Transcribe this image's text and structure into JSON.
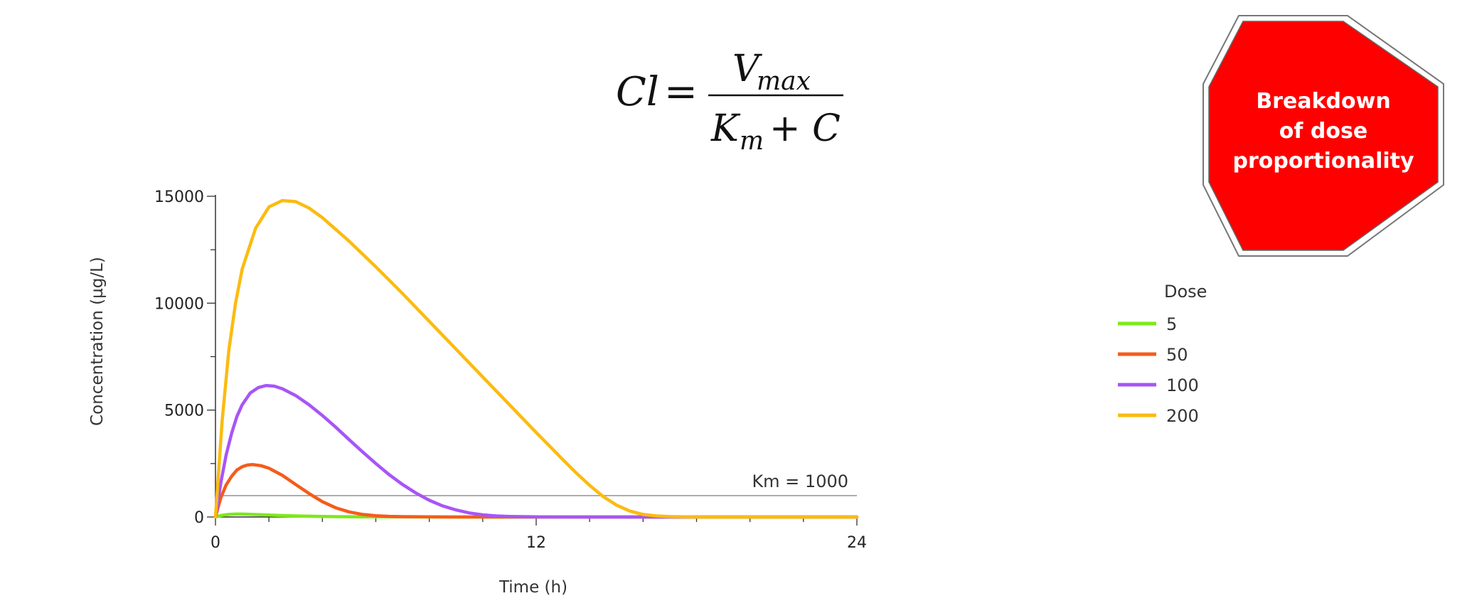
{
  "formula": {
    "lhs": "Cl",
    "equals": "=",
    "numerator_main": "V",
    "numerator_sub": "max",
    "denominator_main": "K",
    "denominator_sub": "m",
    "denominator_rest": "+ C"
  },
  "stop_sign": {
    "lines": [
      "Breakdown",
      "of dose",
      "proportionality"
    ],
    "fill_color": "#ff0000"
  },
  "chart_data": {
    "type": "line",
    "xlabel": "Time (h)",
    "ylabel": "Concentration (µg/L)",
    "xlim": [
      0,
      24
    ],
    "ylim": [
      0,
      15000
    ],
    "x_ticks": [
      0,
      12,
      24
    ],
    "y_ticks": [
      0,
      5000,
      10000,
      15000
    ],
    "grid": false,
    "legend": {
      "title": "Dose",
      "placement": "right"
    },
    "reference_line": {
      "y": 1000,
      "label": "Km = 1000",
      "color": "#888888"
    },
    "series": [
      {
        "name": "5",
        "color": "#7ee81c",
        "x": [
          0,
          0.25,
          0.5,
          0.75,
          1,
          1.5,
          2,
          2.5,
          3,
          3.5,
          4,
          4.5,
          5,
          6,
          7,
          8,
          10,
          12,
          16,
          20,
          24
        ],
        "y": [
          0,
          80,
          120,
          135,
          135,
          115,
          90,
          68,
          50,
          36,
          26,
          18,
          12,
          6,
          3,
          1,
          0,
          0,
          0,
          0,
          0
        ]
      },
      {
        "name": "50",
        "color": "#f55c1a",
        "x": [
          0,
          0.2,
          0.4,
          0.6,
          0.8,
          1,
          1.2,
          1.4,
          1.7,
          2,
          2.5,
          3,
          3.5,
          4,
          4.5,
          5,
          5.5,
          6,
          6.5,
          7,
          8,
          9,
          10,
          12,
          16,
          20,
          24
        ],
        "y": [
          0,
          900,
          1500,
          1900,
          2200,
          2350,
          2430,
          2450,
          2400,
          2280,
          1950,
          1520,
          1100,
          720,
          430,
          240,
          120,
          60,
          30,
          15,
          5,
          0,
          0,
          0,
          0,
          0,
          0
        ]
      },
      {
        "name": "100",
        "color": "#a855f7",
        "x": [
          0,
          0.2,
          0.4,
          0.6,
          0.8,
          1,
          1.3,
          1.6,
          1.9,
          2.2,
          2.5,
          3,
          3.5,
          4,
          4.5,
          5,
          5.5,
          6,
          6.5,
          7,
          7.5,
          8,
          8.5,
          9,
          9.5,
          10,
          10.5,
          11,
          12,
          14,
          16,
          20,
          24
        ],
        "y": [
          0,
          1600,
          2900,
          3900,
          4700,
          5250,
          5800,
          6050,
          6150,
          6120,
          6000,
          5680,
          5250,
          4750,
          4200,
          3620,
          3050,
          2500,
          1980,
          1520,
          1120,
          780,
          520,
          330,
          190,
          100,
          50,
          25,
          5,
          0,
          0,
          0,
          0
        ]
      },
      {
        "name": "200",
        "color": "#fbbb10",
        "x": [
          0,
          0.25,
          0.5,
          0.75,
          1,
          1.5,
          2,
          2.5,
          3,
          3.5,
          4,
          5,
          6,
          7,
          8,
          9,
          10,
          11,
          12,
          12.5,
          13,
          13.5,
          14,
          14.5,
          15,
          15.5,
          16,
          16.5,
          17,
          18,
          20,
          24
        ],
        "y": [
          0,
          4500,
          7800,
          10000,
          11600,
          13500,
          14500,
          14800,
          14750,
          14450,
          14000,
          12900,
          11700,
          10450,
          9150,
          7850,
          6550,
          5250,
          3950,
          3320,
          2680,
          2060,
          1480,
          960,
          560,
          280,
          120,
          50,
          20,
          0,
          0,
          0
        ]
      }
    ]
  }
}
